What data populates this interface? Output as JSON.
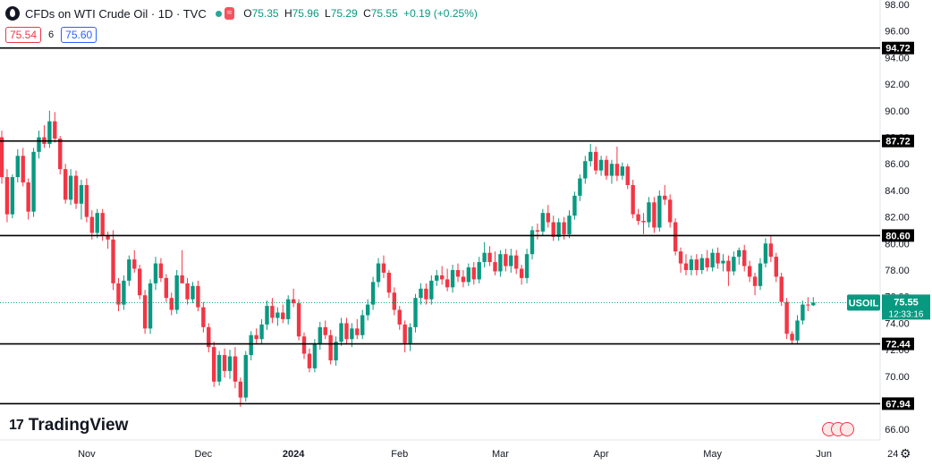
{
  "header": {
    "title": "CFDs on WTI Crude Oil · 1D · TVC",
    "market_icon": "tilde-wave-icon",
    "ohlc": {
      "open_key": "O",
      "open": "75.35",
      "high_key": "H",
      "high": "75.96",
      "low_key": "L",
      "low": "75.29",
      "close_key": "C",
      "close": "75.55",
      "change": "+0.19 (+0.25%)"
    }
  },
  "quote": {
    "bid": "75.54",
    "spread": "6",
    "ask": "75.60"
  },
  "brand": {
    "name": "TradingView",
    "mark": "17"
  },
  "colors": {
    "up": "#089981",
    "down": "#f23645",
    "level_line": "#000000",
    "last_price": "#089981"
  },
  "chart_data": {
    "type": "candlestick",
    "symbol": "USOIL",
    "yaxis": {
      "min": 66,
      "max": 98,
      "ticks": [
        "98.00",
        "96.00",
        "94.00",
        "92.00",
        "90.00",
        "88.00",
        "86.00",
        "84.00",
        "82.00",
        "80.00",
        "78.00",
        "76.00",
        "74.00",
        "72.00",
        "70.00",
        "68.00",
        "66.00"
      ]
    },
    "xaxis": {
      "labels": [
        {
          "text": "Nov",
          "index": 16
        },
        {
          "text": "Dec",
          "index": 38
        },
        {
          "text": "2024",
          "index": 55
        },
        {
          "text": "Feb",
          "index": 75
        },
        {
          "text": "Mar",
          "index": 94
        },
        {
          "text": "Apr",
          "index": 113
        },
        {
          "text": "May",
          "index": 134
        },
        {
          "text": "Jun",
          "index": 155
        },
        {
          "text": "24",
          "index": 168
        }
      ]
    },
    "levels": [
      {
        "value": 94.72,
        "label": "94.72"
      },
      {
        "value": 87.72,
        "label": "87.72"
      },
      {
        "value": 80.6,
        "label": "80.60"
      },
      {
        "value": 72.44,
        "label": "72.44"
      },
      {
        "value": 67.94,
        "label": "67.94"
      }
    ],
    "last": {
      "symbol": "USOIL",
      "price": "75.55",
      "value": 75.55,
      "countdown": "12:33:16"
    },
    "candles": [
      [
        88.0,
        88.5,
        84.5,
        85.0
      ],
      [
        85.0,
        85.6,
        81.6,
        82.2
      ],
      [
        82.2,
        85.2,
        81.9,
        85.0
      ],
      [
        85.0,
        87.1,
        84.6,
        86.6
      ],
      [
        86.6,
        87.2,
        84.3,
        84.6
      ],
      [
        84.6,
        84.9,
        81.8,
        82.4
      ],
      [
        82.4,
        87.2,
        82.0,
        86.9
      ],
      [
        86.9,
        88.5,
        86.4,
        88.0
      ],
      [
        88.0,
        88.9,
        87.2,
        87.5
      ],
      [
        87.5,
        90.0,
        87.2,
        89.2
      ],
      [
        89.2,
        89.9,
        87.6,
        87.9
      ],
      [
        87.9,
        88.1,
        85.2,
        85.6
      ],
      [
        85.6,
        86.0,
        83.0,
        83.3
      ],
      [
        83.3,
        85.6,
        82.9,
        85.1
      ],
      [
        85.1,
        85.5,
        82.6,
        83.0
      ],
      [
        83.0,
        84.8,
        81.8,
        84.4
      ],
      [
        84.4,
        84.9,
        81.6,
        82.0
      ],
      [
        82.0,
        82.5,
        80.3,
        80.8
      ],
      [
        80.8,
        82.6,
        80.4,
        82.3
      ],
      [
        82.3,
        82.6,
        80.2,
        80.6
      ],
      [
        80.6,
        80.9,
        79.6,
        80.3
      ],
      [
        80.3,
        81.0,
        76.5,
        77.0
      ],
      [
        77.0,
        77.4,
        74.9,
        75.4
      ],
      [
        75.4,
        77.6,
        75.0,
        77.2
      ],
      [
        77.2,
        79.1,
        76.8,
        78.8
      ],
      [
        78.8,
        79.5,
        77.8,
        78.1
      ],
      [
        78.1,
        78.4,
        75.8,
        76.1
      ],
      [
        76.1,
        76.5,
        73.2,
        73.6
      ],
      [
        73.6,
        77.3,
        73.2,
        77.0
      ],
      [
        77.0,
        79.0,
        76.5,
        78.5
      ],
      [
        78.5,
        78.9,
        77.1,
        77.4
      ],
      [
        77.4,
        77.7,
        75.6,
        75.9
      ],
      [
        75.9,
        76.3,
        74.6,
        75.0
      ],
      [
        75.0,
        78.0,
        74.7,
        77.6
      ],
      [
        77.6,
        79.5,
        77.2,
        77.0
      ],
      [
        77.0,
        77.4,
        75.4,
        75.8
      ],
      [
        75.8,
        77.1,
        75.5,
        76.8
      ],
      [
        76.8,
        77.2,
        74.9,
        75.2
      ],
      [
        75.2,
        75.6,
        73.3,
        73.7
      ],
      [
        73.7,
        74.0,
        71.8,
        72.2
      ],
      [
        72.2,
        72.6,
        69.2,
        69.6
      ],
      [
        69.6,
        71.9,
        69.3,
        71.6
      ],
      [
        71.6,
        72.1,
        69.9,
        70.4
      ],
      [
        70.4,
        72.0,
        69.8,
        71.5
      ],
      [
        71.5,
        72.2,
        69.1,
        69.6
      ],
      [
        69.6,
        69.9,
        67.7,
        68.4
      ],
      [
        68.4,
        71.9,
        68.1,
        71.6
      ],
      [
        71.6,
        73.4,
        71.2,
        73.1
      ],
      [
        73.1,
        73.6,
        72.5,
        72.8
      ],
      [
        72.8,
        74.3,
        72.4,
        73.9
      ],
      [
        73.9,
        75.7,
        73.5,
        75.3
      ],
      [
        75.3,
        75.9,
        74.0,
        74.4
      ],
      [
        74.4,
        75.2,
        73.8,
        74.8
      ],
      [
        74.8,
        75.4,
        74.0,
        74.3
      ],
      [
        74.3,
        76.1,
        73.9,
        75.8
      ],
      [
        75.8,
        76.6,
        75.2,
        75.5
      ],
      [
        75.5,
        75.8,
        72.7,
        73.0
      ],
      [
        73.0,
        73.3,
        71.3,
        71.7
      ],
      [
        71.7,
        72.1,
        70.3,
        70.6
      ],
      [
        70.6,
        72.8,
        70.3,
        72.4
      ],
      [
        72.4,
        74.1,
        72.0,
        73.7
      ],
      [
        73.7,
        74.2,
        72.8,
        73.1
      ],
      [
        73.1,
        73.5,
        70.9,
        71.2
      ],
      [
        71.2,
        73.0,
        70.8,
        72.6
      ],
      [
        72.6,
        74.4,
        72.3,
        74.0
      ],
      [
        74.0,
        74.4,
        72.4,
        72.8
      ],
      [
        72.8,
        74.0,
        72.2,
        73.6
      ],
      [
        73.6,
        74.3,
        72.8,
        73.1
      ],
      [
        73.1,
        75.0,
        72.8,
        74.6
      ],
      [
        74.6,
        75.8,
        74.2,
        75.4
      ],
      [
        75.4,
        77.5,
        75.0,
        77.1
      ],
      [
        77.1,
        78.9,
        76.7,
        78.5
      ],
      [
        78.5,
        79.1,
        77.4,
        77.8
      ],
      [
        77.8,
        78.0,
        75.9,
        76.3
      ],
      [
        76.3,
        76.7,
        74.6,
        75.0
      ],
      [
        75.0,
        75.3,
        73.5,
        73.9
      ],
      [
        73.9,
        74.2,
        71.8,
        72.5
      ],
      [
        72.5,
        74.0,
        71.9,
        73.7
      ],
      [
        73.7,
        76.2,
        73.3,
        75.9
      ],
      [
        75.9,
        77.0,
        75.4,
        76.6
      ],
      [
        76.6,
        77.0,
        75.4,
        75.8
      ],
      [
        75.8,
        77.6,
        75.4,
        77.2
      ],
      [
        77.2,
        78.0,
        76.8,
        77.6
      ],
      [
        77.6,
        78.3,
        76.9,
        77.3
      ],
      [
        77.3,
        78.1,
        76.4,
        76.7
      ],
      [
        76.7,
        78.4,
        76.3,
        78.0
      ],
      [
        78.0,
        78.5,
        77.1,
        77.5
      ],
      [
        77.5,
        78.0,
        76.7,
        77.1
      ],
      [
        77.1,
        78.5,
        76.8,
        78.2
      ],
      [
        78.2,
        78.6,
        76.9,
        77.3
      ],
      [
        77.3,
        79.0,
        77.0,
        78.6
      ],
      [
        78.6,
        80.1,
        78.2,
        79.3
      ],
      [
        79.3,
        79.8,
        78.3,
        78.6
      ],
      [
        78.6,
        79.4,
        77.6,
        77.9
      ],
      [
        77.9,
        79.5,
        77.5,
        79.2
      ],
      [
        79.2,
        79.6,
        77.9,
        78.3
      ],
      [
        78.3,
        79.6,
        77.8,
        79.1
      ],
      [
        79.1,
        79.5,
        77.7,
        78.1
      ],
      [
        78.1,
        78.4,
        76.9,
        77.4
      ],
      [
        77.4,
        79.6,
        77.0,
        79.2
      ],
      [
        79.2,
        81.3,
        78.8,
        81.0
      ],
      [
        81.0,
        81.5,
        80.3,
        80.9
      ],
      [
        80.9,
        82.6,
        80.6,
        82.3
      ],
      [
        82.3,
        82.9,
        81.2,
        81.6
      ],
      [
        81.6,
        82.1,
        80.2,
        80.5
      ],
      [
        80.5,
        81.9,
        80.2,
        81.6
      ],
      [
        81.6,
        82.0,
        80.3,
        80.7
      ],
      [
        80.7,
        82.5,
        80.4,
        82.1
      ],
      [
        82.1,
        83.9,
        81.8,
        83.6
      ],
      [
        83.6,
        85.2,
        83.2,
        84.9
      ],
      [
        84.9,
        86.6,
        84.5,
        86.2
      ],
      [
        86.2,
        87.5,
        85.8,
        86.9
      ],
      [
        86.9,
        87.3,
        85.2,
        85.5
      ],
      [
        85.5,
        86.6,
        85.1,
        86.3
      ],
      [
        86.3,
        86.6,
        84.8,
        85.1
      ],
      [
        85.1,
        86.3,
        84.5,
        86.0
      ],
      [
        86.0,
        87.3,
        84.7,
        85.1
      ],
      [
        85.1,
        86.1,
        84.8,
        85.8
      ],
      [
        85.8,
        86.0,
        84.1,
        84.4
      ],
      [
        84.4,
        84.8,
        81.9,
        82.2
      ],
      [
        82.2,
        82.6,
        81.4,
        81.7
      ],
      [
        81.7,
        82.3,
        80.7,
        81.6
      ],
      [
        81.6,
        83.5,
        81.2,
        83.1
      ],
      [
        83.1,
        83.5,
        80.8,
        81.2
      ],
      [
        81.2,
        84.0,
        80.9,
        83.6
      ],
      [
        83.6,
        84.4,
        82.9,
        83.3
      ],
      [
        83.3,
        83.7,
        81.2,
        81.6
      ],
      [
        81.6,
        81.9,
        79.1,
        79.4
      ],
      [
        79.4,
        79.7,
        77.8,
        78.5
      ],
      [
        78.5,
        79.2,
        77.6,
        78.0
      ],
      [
        78.0,
        79.1,
        77.6,
        78.8
      ],
      [
        78.8,
        79.2,
        77.6,
        78.0
      ],
      [
        78.0,
        79.2,
        77.7,
        78.9
      ],
      [
        78.9,
        79.5,
        77.9,
        78.2
      ],
      [
        78.2,
        79.6,
        77.9,
        79.3
      ],
      [
        79.3,
        79.7,
        78.1,
        78.5
      ],
      [
        78.5,
        79.2,
        77.9,
        78.7
      ],
      [
        78.7,
        79.1,
        76.8,
        77.9
      ],
      [
        77.9,
        79.4,
        77.6,
        79.0
      ],
      [
        79.0,
        79.7,
        78.4,
        79.5
      ],
      [
        79.5,
        79.9,
        77.9,
        78.3
      ],
      [
        78.3,
        78.7,
        77.1,
        77.5
      ],
      [
        77.5,
        77.8,
        76.1,
        76.8
      ],
      [
        76.8,
        78.9,
        76.5,
        78.5
      ],
      [
        78.5,
        80.4,
        78.2,
        80.0
      ],
      [
        80.0,
        80.6,
        78.6,
        79.0
      ],
      [
        79.0,
        79.3,
        77.1,
        77.5
      ],
      [
        77.5,
        77.8,
        75.3,
        75.6
      ],
      [
        75.6,
        75.9,
        72.8,
        73.2
      ],
      [
        73.2,
        73.4,
        72.4,
        72.7
      ],
      [
        72.7,
        74.6,
        72.4,
        74.2
      ],
      [
        74.2,
        75.7,
        73.9,
        75.4
      ],
      [
        75.4,
        75.96,
        74.9,
        75.36
      ],
      [
        75.35,
        75.96,
        75.29,
        75.55
      ]
    ]
  }
}
